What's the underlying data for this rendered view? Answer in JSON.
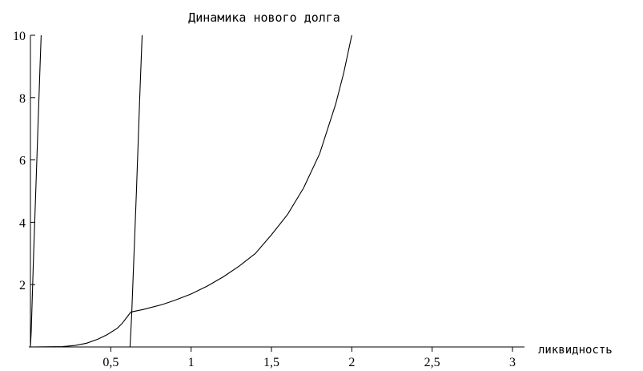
{
  "chart_data": {
    "type": "line",
    "title": "Динамика нового долга",
    "xlabel": "ликвидность",
    "ylabel": "",
    "xlim": [
      -0.01,
      3.1
    ],
    "ylim": [
      0,
      10
    ],
    "x_ticks": [
      {
        "value": 0.5,
        "label": "0,5"
      },
      {
        "value": 1,
        "label": "1"
      },
      {
        "value": 1.5,
        "label": "1,5"
      },
      {
        "value": 2,
        "label": "2"
      },
      {
        "value": 2.5,
        "label": "2,5"
      },
      {
        "value": 3,
        "label": "3"
      }
    ],
    "y_ticks": [
      {
        "value": 2,
        "label": "2"
      },
      {
        "value": 4,
        "label": "4"
      },
      {
        "value": 6,
        "label": "6"
      },
      {
        "value": 8,
        "label": "8"
      },
      {
        "value": 10,
        "label": "10"
      }
    ],
    "grid": false,
    "legend": "none",
    "series": [
      {
        "points": [
          [
            0.0,
            0.0
          ],
          [
            0.005,
            0.5
          ],
          [
            0.02,
            3.0
          ],
          [
            0.04,
            6.0
          ],
          [
            0.06,
            9.0
          ],
          [
            0.067,
            10.0
          ]
        ]
      },
      {
        "points": [
          [
            0.62,
            0.0
          ],
          [
            0.63,
            1.0
          ],
          [
            0.66,
            5.0
          ],
          [
            0.68,
            8.0
          ],
          [
            0.695,
            10.0
          ]
        ]
      },
      {
        "points": [
          [
            0.0,
            0.0
          ],
          [
            0.2,
            0.01
          ],
          [
            0.28,
            0.05
          ],
          [
            0.35,
            0.12
          ],
          [
            0.42,
            0.25
          ],
          [
            0.48,
            0.4
          ],
          [
            0.54,
            0.6
          ],
          [
            0.57,
            0.75
          ],
          [
            0.6,
            0.95
          ],
          [
            0.625,
            1.12
          ],
          [
            0.7,
            1.2
          ],
          [
            0.82,
            1.36
          ],
          [
            0.9,
            1.5
          ],
          [
            1.0,
            1.7
          ],
          [
            1.1,
            1.95
          ],
          [
            1.2,
            2.25
          ],
          [
            1.3,
            2.6
          ],
          [
            1.4,
            3.0
          ],
          [
            1.5,
            3.6
          ],
          [
            1.6,
            4.25
          ],
          [
            1.7,
            5.1
          ],
          [
            1.8,
            6.2
          ],
          [
            1.9,
            7.8
          ],
          [
            1.95,
            8.8
          ],
          [
            2.0,
            10.0
          ]
        ]
      }
    ]
  }
}
